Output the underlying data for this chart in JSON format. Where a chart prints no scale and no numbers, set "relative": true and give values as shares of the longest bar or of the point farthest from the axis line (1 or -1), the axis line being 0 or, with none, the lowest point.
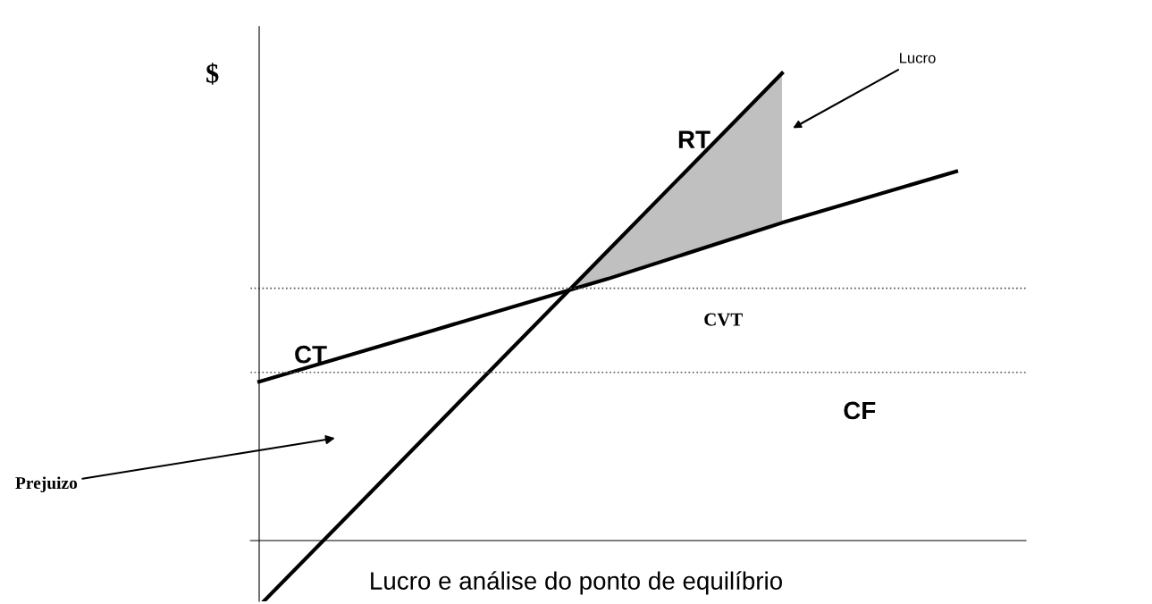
{
  "chart_data": {
    "type": "line",
    "relative": true,
    "title": "Lucro e análise do ponto de equilíbrio",
    "categories": [
      null,
      null,
      null,
      null,
      null
    ],
    "series": [
      {
        "name": "RT",
        "color": "#000000",
        "values": [
          -0.14,
          0.24,
          0.62,
          1.0,
          null
        ]
      },
      {
        "name": "CT",
        "color": "#000000",
        "values": [
          0.34,
          0.45,
          0.56,
          0.68,
          0.79
        ]
      }
    ],
    "ref_lines": [
      {
        "axis": "y",
        "value": 0.36,
        "label": "CF",
        "line_style": "dotted",
        "color": "#555555"
      },
      {
        "axis": "y",
        "value": 0.54,
        "label": "CVT",
        "line_style": "dotted",
        "color": "#555555"
      }
    ],
    "annotations": [
      "$",
      "Lucro",
      "Prejuizo"
    ],
    "grid": false,
    "legend": false,
    "marker": "none",
    "line_style": "solid"
  }
}
